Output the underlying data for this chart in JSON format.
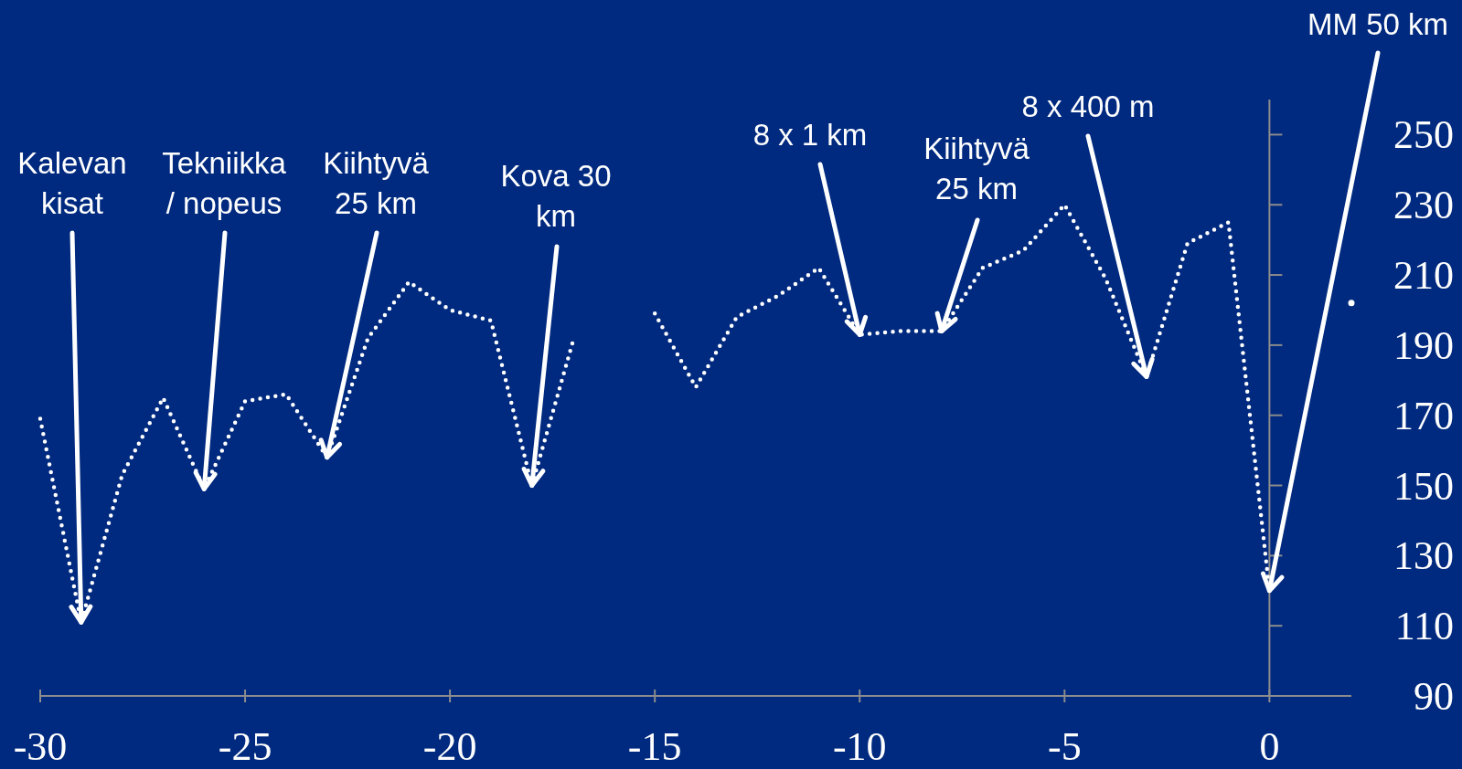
{
  "chart_data": {
    "type": "line",
    "series": [
      {
        "color": "#ffffff",
        "x": [
          -30,
          -29,
          -28,
          -27,
          -26,
          -25,
          -24,
          -23,
          -22,
          -21,
          -20,
          -19,
          -18,
          -17
        ],
        "values": [
          169,
          111,
          153,
          175,
          149,
          174,
          176,
          158,
          192,
          208,
          200,
          197,
          150,
          191
        ]
      },
      {
        "color": "#ffffff",
        "x": [
          -15,
          -14,
          -13,
          -12,
          -11,
          -10,
          -9,
          -8,
          -7,
          -6,
          -5,
          -4,
          -3,
          -2,
          -1,
          0
        ],
        "values": [
          199,
          178,
          198,
          204,
          212,
          193,
          194,
          194,
          212,
          217,
          230,
          209,
          181,
          219,
          225,
          120
        ]
      },
      {
        "type": "scatter",
        "marker": "circle",
        "color": "#ffffff",
        "x": [
          2
        ],
        "values": [
          202
        ]
      }
    ],
    "xlim": [
      -30,
      2
    ],
    "ylim": [
      90,
      260
    ],
    "xticks": [
      -30,
      -25,
      -20,
      -15,
      -10,
      -5,
      0
    ],
    "yticks": [
      90,
      110,
      130,
      150,
      170,
      190,
      210,
      230,
      250
    ],
    "line_style": "dotted",
    "annotations": [
      {
        "text": "Kalevan kisat",
        "x": -29,
        "y": 111
      },
      {
        "text": "Tekniikka / nopeus",
        "x": -26,
        "y": 149
      },
      {
        "text": "Kiihtyvä 25 km",
        "x": -23,
        "y": 158
      },
      {
        "text": "Kova 30 km",
        "x": -18,
        "y": 150
      },
      {
        "text": "8 x 1 km",
        "x": -10,
        "y": 193
      },
      {
        "text": "Kiihtyvä 25 km",
        "x": -8,
        "y": 194
      },
      {
        "text": "8 x 400 m",
        "x": -3,
        "y": 181
      },
      {
        "text": "MM 50 km",
        "x": 0,
        "y": 120
      }
    ]
  }
}
